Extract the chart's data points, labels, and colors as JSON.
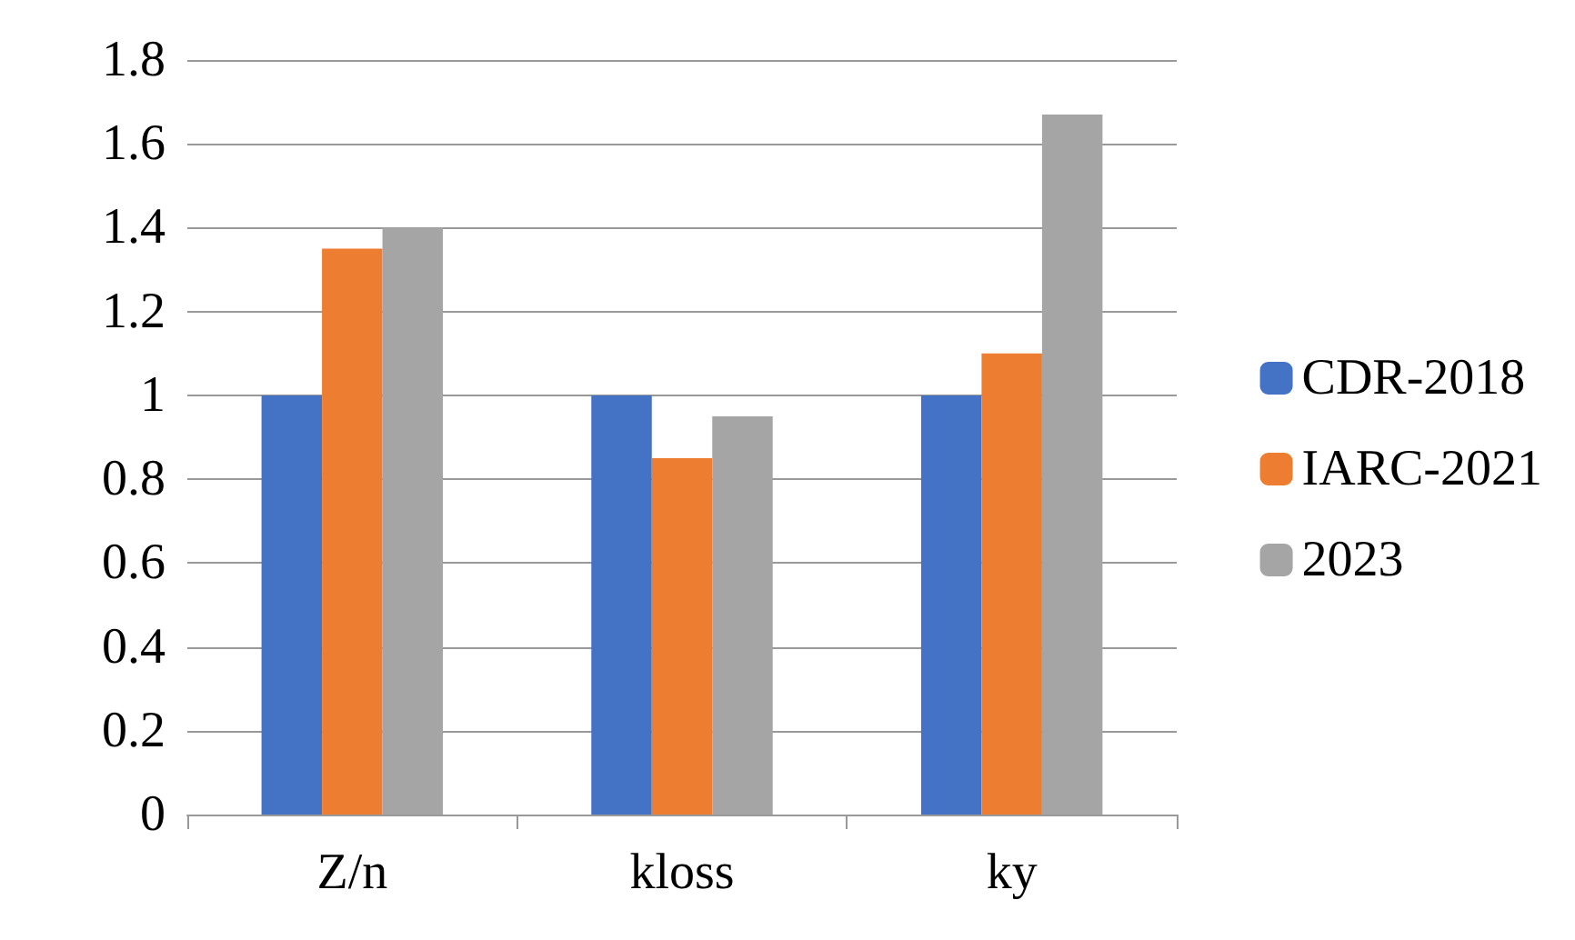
{
  "chart_data": {
    "type": "bar",
    "categories": [
      "Z/n",
      "kloss",
      "ky"
    ],
    "series": [
      {
        "name": "CDR-2018",
        "color": "#4472c4",
        "values": [
          1,
          1,
          1
        ]
      },
      {
        "name": "IARC-2021",
        "color": "#ed7d31",
        "values": [
          1.35,
          0.85,
          1.1
        ]
      },
      {
        "name": "2023",
        "color": "#a5a5a5",
        "values": [
          1.4,
          0.95,
          1.67
        ]
      }
    ],
    "ylim": [
      0,
      1.8
    ],
    "yticks": [
      0,
      0.2,
      0.4,
      0.6,
      0.8,
      1,
      1.2,
      1.4,
      1.6,
      1.8
    ],
    "grid": "y",
    "legend": "right"
  }
}
